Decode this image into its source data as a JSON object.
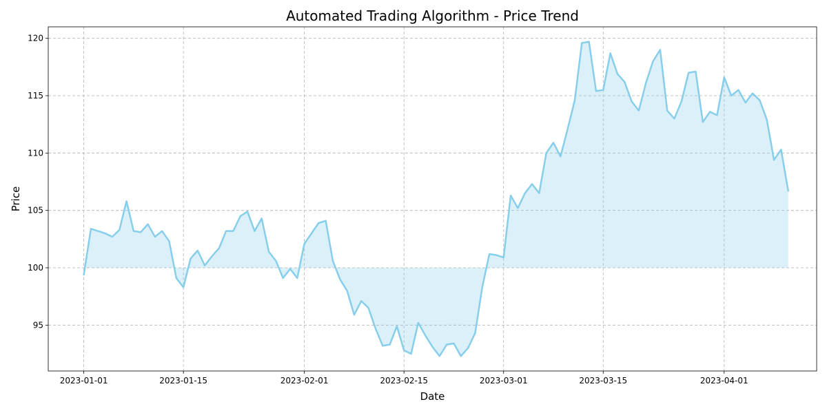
{
  "chart_data": {
    "type": "line",
    "title": "Automated Trading Algorithm - Price Trend",
    "xlabel": "Date",
    "ylabel": "Price",
    "ylim": [
      91,
      121
    ],
    "xlim": [
      "2022-12-27",
      "2023-04-14"
    ],
    "baseline": 100,
    "fill_between_baseline": true,
    "grid": true,
    "colors": {
      "line": "#87ceeb",
      "fill": "#87ceeb",
      "grid": "#b0b0b0"
    },
    "x_ticks": [
      "2023-01-01",
      "2023-01-15",
      "2023-02-01",
      "2023-02-15",
      "2023-03-01",
      "2023-03-15",
      "2023-04-01"
    ],
    "y_ticks": [
      95,
      100,
      105,
      110,
      115,
      120
    ],
    "series": [
      {
        "start_date": "2023-01-01",
        "values": [
          99.4,
          103.4,
          103.2,
          103.0,
          102.7,
          103.3,
          105.8,
          103.2,
          103.1,
          103.8,
          102.7,
          103.2,
          102.3,
          99.1,
          98.3,
          100.8,
          101.5,
          100.2,
          101.0,
          101.7,
          103.2,
          103.2,
          104.5,
          104.9,
          103.2,
          104.3,
          101.4,
          100.6,
          99.1,
          99.9,
          99.1,
          102.1,
          103.0,
          103.9,
          104.1,
          100.6,
          99.0,
          98.0,
          95.9,
          97.1,
          96.5,
          94.7,
          93.2,
          93.3,
          94.9,
          92.8,
          92.5,
          95.2,
          94.1,
          93.1,
          92.3,
          93.3,
          93.4,
          92.3,
          93.0,
          94.3,
          98.3,
          101.2,
          101.1,
          100.9,
          106.3,
          105.2,
          106.5,
          107.3,
          106.5,
          110.0,
          110.9,
          109.7,
          112.1,
          114.6,
          119.6,
          119.7,
          115.4,
          115.5,
          118.7,
          116.9,
          116.2,
          114.5,
          113.7,
          116.1,
          118.0,
          119.0,
          113.7,
          113.0,
          114.5,
          117.0,
          117.1,
          112.7,
          113.6,
          113.3,
          116.6,
          115.0,
          115.5,
          114.4,
          115.2,
          114.6,
          112.9,
          109.4,
          110.3,
          106.7
        ]
      }
    ]
  }
}
